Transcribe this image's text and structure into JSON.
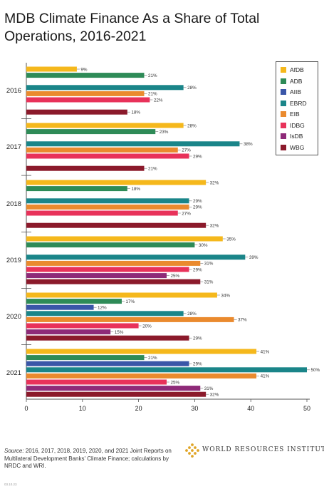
{
  "title": "MDB Climate Finance As a Share of Total Operations, 2016-2021",
  "source": {
    "label": "Source:",
    "text": " 2016, 2017, 2018, 2019, 2020, and 2021 Joint Reports on Multilateral Development Banks' Climate Finance; calculations by NRDC and WRI."
  },
  "brand": "WORLD RESOURCES INSTITUTE",
  "date": "03.10.23",
  "colors": {
    "AfDB": "#f5b81c",
    "ADB": "#2e8b57",
    "AIIB": "#3a56a8",
    "EBRD": "#1a8589",
    "EIB": "#ea8a2e",
    "IDBG": "#e8325a",
    "IsDB": "#8e2a78",
    "WBG": "#8b1a2b",
    "axis": "#555555",
    "brand_gold": "#e0a526"
  },
  "chart_data": {
    "type": "bar",
    "orientation": "horizontal",
    "categories": [
      "2016",
      "2017",
      "2018",
      "2019",
      "2020",
      "2021"
    ],
    "series": [
      {
        "name": "AfDB",
        "values": [
          9,
          28,
          32,
          35,
          34,
          41
        ]
      },
      {
        "name": "ADB",
        "values": [
          21,
          23,
          18,
          30,
          17,
          21
        ]
      },
      {
        "name": "AIIB",
        "values": [
          null,
          null,
          null,
          null,
          12,
          29
        ]
      },
      {
        "name": "EBRD",
        "values": [
          28,
          38,
          29,
          39,
          28,
          50
        ]
      },
      {
        "name": "EIB",
        "values": [
          21,
          27,
          29,
          31,
          37,
          41
        ]
      },
      {
        "name": "IDBG",
        "values": [
          22,
          29,
          27,
          29,
          20,
          25
        ]
      },
      {
        "name": "IsDB",
        "values": [
          null,
          null,
          null,
          25,
          15,
          31
        ]
      },
      {
        "name": "WBG",
        "values": [
          18,
          21,
          32,
          31,
          29,
          32
        ]
      }
    ],
    "xlim": [
      0,
      50
    ],
    "xticks": [
      0,
      10,
      20,
      30,
      40,
      50
    ],
    "value_suffix": "%",
    "legend_position": "top-right",
    "grid": false
  }
}
